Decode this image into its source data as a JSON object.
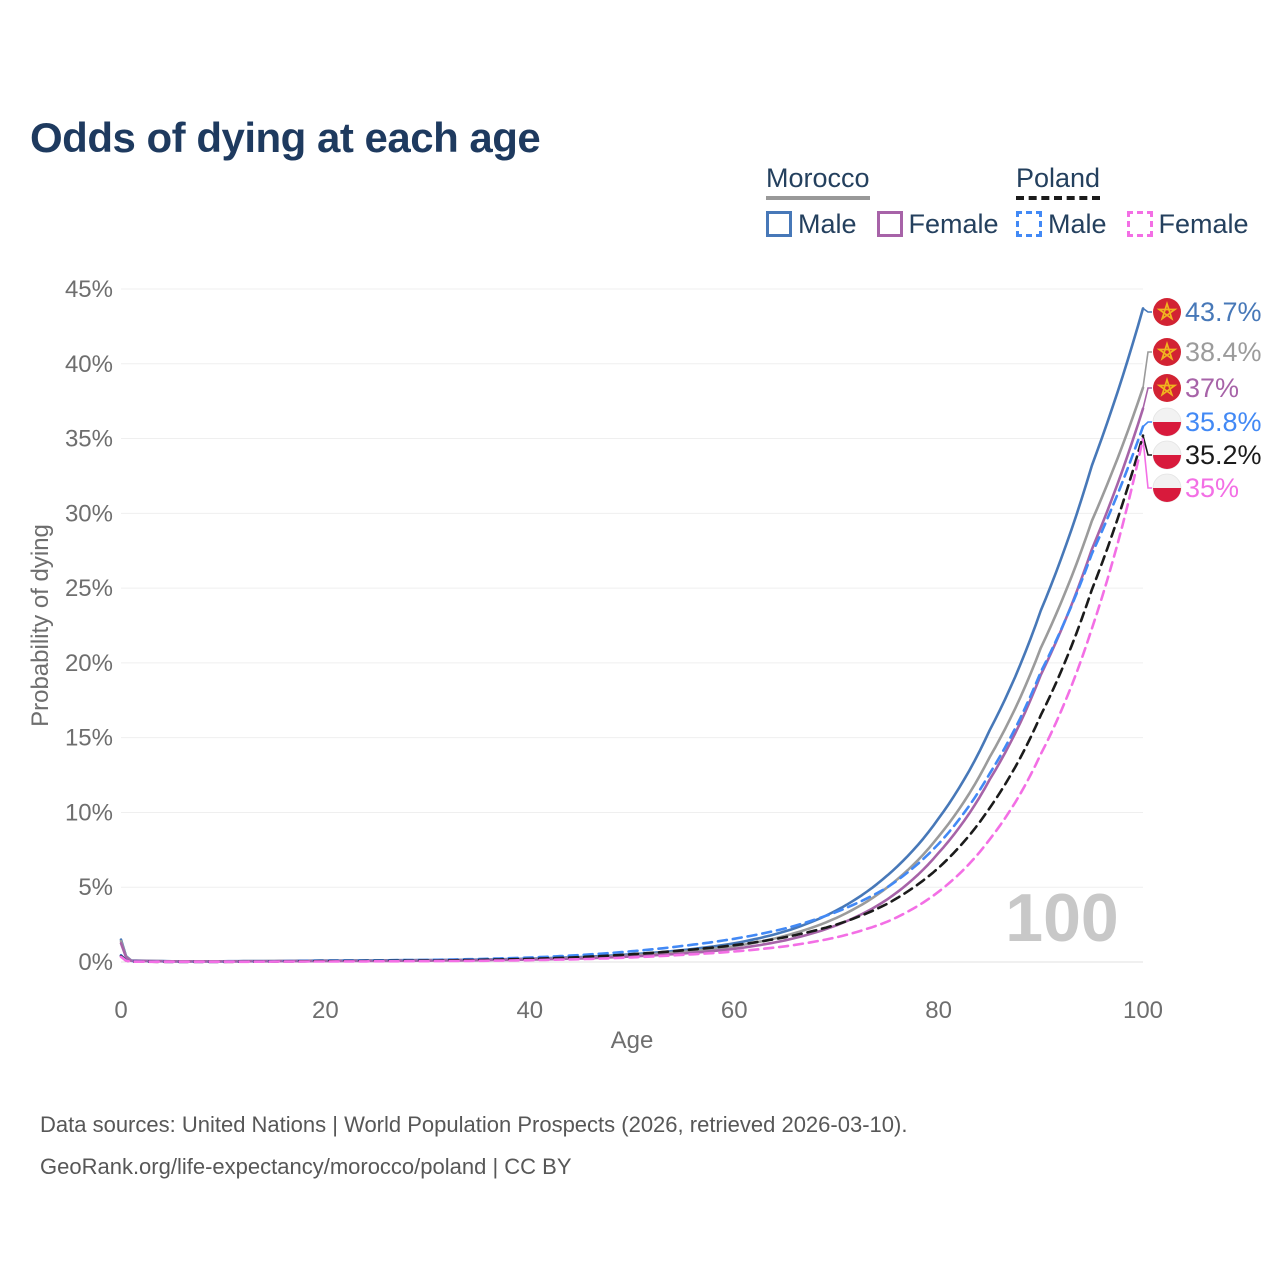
{
  "title": "Odds of dying at each age",
  "legend": {
    "groups": [
      {
        "title": "Morocco",
        "line_color": "#999999",
        "line_style": "solid",
        "items": [
          {
            "label": "Male",
            "series": "morocco-male"
          },
          {
            "label": "Female",
            "series": "morocco-female"
          }
        ]
      },
      {
        "title": "Poland",
        "line_color": "#1b1b1b",
        "line_style": "dashed",
        "items": [
          {
            "label": "Male",
            "series": "poland-male"
          },
          {
            "label": "Female",
            "series": "poland-female"
          }
        ]
      }
    ]
  },
  "chart_data": {
    "type": "line",
    "title": "Odds of dying at each age",
    "xlabel": "Age",
    "ylabel": "Probability of dying",
    "xlim": [
      0,
      100
    ],
    "ylim": [
      0,
      45
    ],
    "grid": "horizontal",
    "legend_position": "top-right",
    "x_ticks": [
      {
        "value": 0,
        "label": "0"
      },
      {
        "value": 20,
        "label": "20"
      },
      {
        "value": 40,
        "label": "40"
      },
      {
        "value": 60,
        "label": "60"
      },
      {
        "value": 80,
        "label": "80"
      },
      {
        "value": 100,
        "label": "100"
      }
    ],
    "y_ticks": [
      {
        "value": 0,
        "label": "0%"
      },
      {
        "value": 5,
        "label": "5%"
      },
      {
        "value": 10,
        "label": "10%"
      },
      {
        "value": 15,
        "label": "15%"
      },
      {
        "value": 20,
        "label": "20%"
      },
      {
        "value": 25,
        "label": "25%"
      },
      {
        "value": 30,
        "label": "30%"
      },
      {
        "value": 35,
        "label": "35%"
      },
      {
        "value": 40,
        "label": "40%"
      },
      {
        "value": 45,
        "label": "45%"
      }
    ],
    "x": [
      0,
      1,
      5,
      10,
      15,
      20,
      25,
      30,
      35,
      40,
      45,
      50,
      55,
      60,
      65,
      70,
      75,
      80,
      85,
      90,
      95,
      100
    ],
    "series": [
      {
        "id": "morocco-male",
        "name": "Morocco Male",
        "country": "Morocco",
        "sex": "male",
        "color": "#4778b8",
        "dash": false,
        "values": [
          1.5,
          0.1,
          0.05,
          0.05,
          0.07,
          0.1,
          0.11,
          0.13,
          0.16,
          0.22,
          0.33,
          0.52,
          0.8,
          1.25,
          2.05,
          3.45,
          5.8,
          9.6,
          15.5,
          23.5,
          33.2,
          43.7
        ]
      },
      {
        "id": "morocco-both",
        "name": "Morocco Both sexes",
        "country": "Morocco",
        "sex": "both",
        "color": "#9b9b9b",
        "dash": false,
        "values": [
          1.4,
          0.09,
          0.045,
          0.045,
          0.06,
          0.08,
          0.09,
          0.11,
          0.14,
          0.19,
          0.28,
          0.44,
          0.68,
          1.05,
          1.75,
          2.95,
          5.0,
          8.4,
          13.7,
          21.0,
          29.5,
          38.4
        ]
      },
      {
        "id": "morocco-female",
        "name": "Morocco Female",
        "country": "Morocco",
        "sex": "female",
        "color": "#a763a8",
        "dash": false,
        "values": [
          1.25,
          0.08,
          0.04,
          0.04,
          0.05,
          0.06,
          0.07,
          0.09,
          0.12,
          0.16,
          0.24,
          0.37,
          0.57,
          0.88,
          1.45,
          2.45,
          4.2,
          7.3,
          12.2,
          19.2,
          27.6,
          37.0
        ]
      },
      {
        "id": "poland-male",
        "name": "Poland Male",
        "country": "Poland",
        "sex": "male",
        "color": "#4289f5",
        "dash": true,
        "values": [
          0.45,
          0.03,
          0.015,
          0.015,
          0.045,
          0.09,
          0.11,
          0.14,
          0.2,
          0.3,
          0.47,
          0.72,
          1.08,
          1.55,
          2.25,
          3.35,
          5.0,
          7.9,
          12.6,
          19.4,
          27.3,
          35.8
        ]
      },
      {
        "id": "poland-both",
        "name": "Poland Both sexes",
        "country": "Poland",
        "sex": "both",
        "color": "#1b1b1b",
        "dash": true,
        "values": [
          0.4,
          0.025,
          0.013,
          0.013,
          0.035,
          0.06,
          0.075,
          0.095,
          0.14,
          0.21,
          0.33,
          0.52,
          0.78,
          1.12,
          1.66,
          2.5,
          3.9,
          6.3,
          10.3,
          16.5,
          24.9,
          35.2
        ]
      },
      {
        "id": "poland-female",
        "name": "Poland Female",
        "country": "Poland",
        "sex": "female",
        "color": "#f36fe5",
        "dash": true,
        "values": [
          0.35,
          0.02,
          0.011,
          0.011,
          0.025,
          0.035,
          0.045,
          0.055,
          0.08,
          0.12,
          0.19,
          0.31,
          0.48,
          0.7,
          1.05,
          1.65,
          2.7,
          4.7,
          8.2,
          13.9,
          22.3,
          35.0
        ]
      }
    ],
    "end_labels": [
      {
        "series": "morocco-male",
        "flag": "morocco",
        "label": "43.7%",
        "value": 43.7
      },
      {
        "series": "morocco-both",
        "flag": "morocco",
        "label": "38.4%",
        "value": 38.4
      },
      {
        "series": "morocco-female",
        "flag": "morocco",
        "label": "37%",
        "value": 37
      },
      {
        "series": "poland-male",
        "flag": "poland",
        "label": "35.8%",
        "value": 35.8
      },
      {
        "series": "poland-both",
        "flag": "poland",
        "label": "35.2%",
        "value": 35.2
      },
      {
        "series": "poland-female",
        "flag": "poland",
        "label": "35%",
        "value": 35
      }
    ],
    "watermark": "100",
    "flag_colors": {
      "morocco_red": "#d22333",
      "morocco_star": "#f0b41e",
      "poland_white": "#f2f2f2",
      "poland_red": "#d81a3c"
    }
  },
  "footer": {
    "line1": "Data sources: United Nations | World Population Prospects (2026, retrieved 2026-03-10).",
    "line2": "GeoRank.org/life-expectancy/morocco/poland | CC BY"
  }
}
